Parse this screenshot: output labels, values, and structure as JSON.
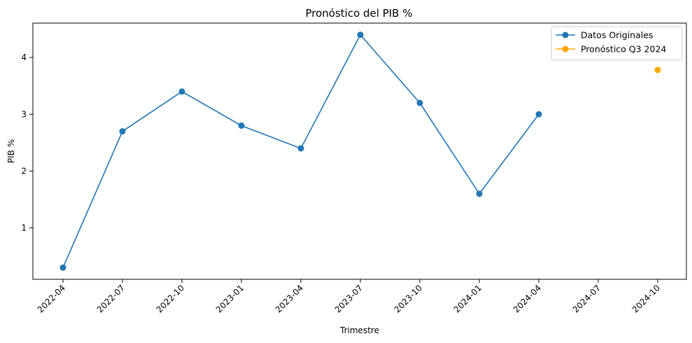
{
  "chart_data": {
    "type": "line",
    "title": "Pronóstico del PIB %",
    "xlabel": "Trimestre",
    "ylabel": "PIB %",
    "x_ticks": [
      "2022-04",
      "2022-07",
      "2022-10",
      "2023-01",
      "2023-04",
      "2023-07",
      "2023-10",
      "2024-01",
      "2024-04",
      "2024-07",
      "2024-10"
    ],
    "y_ticks": [
      "1",
      "2",
      "3",
      "4"
    ],
    "ylim": [
      0.095,
      4.605
    ],
    "grid": false,
    "legend_position": "top-right",
    "series": [
      {
        "name": "Datos Originales",
        "color": "#1f77b4",
        "marker": "circle",
        "line": true,
        "x": [
          "2022-04",
          "2022-07",
          "2022-10",
          "2023-01",
          "2023-04",
          "2023-07",
          "2023-10",
          "2024-01",
          "2024-04"
        ],
        "y": [
          0.3,
          2.7,
          3.4,
          2.8,
          2.4,
          4.4,
          3.2,
          1.6,
          3.0
        ]
      },
      {
        "name": "Pronóstico Q3 2024",
        "color": "#ffa500",
        "marker": "circle",
        "line": true,
        "x": [
          "2024-10"
        ],
        "y": [
          3.78
        ]
      }
    ]
  }
}
